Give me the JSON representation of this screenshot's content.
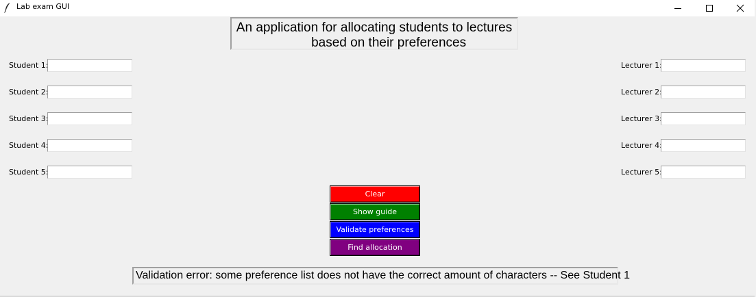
{
  "window": {
    "title": "Lab exam GUI",
    "icon": "feather-icon"
  },
  "header": {
    "text": "An application for allocating students to lectures\n        based on their preferences"
  },
  "students": [
    {
      "label": "Student 1:",
      "value": ""
    },
    {
      "label": "Student 2:",
      "value": ""
    },
    {
      "label": "Student 3:",
      "value": ""
    },
    {
      "label": "Student 4:",
      "value": ""
    },
    {
      "label": "Student 5:",
      "value": ""
    }
  ],
  "lecturers": [
    {
      "label": "Lecturer 1:",
      "value": ""
    },
    {
      "label": "Lecturer 2:",
      "value": ""
    },
    {
      "label": "Lecturer 3:",
      "value": ""
    },
    {
      "label": "Lecturer 4:",
      "value": ""
    },
    {
      "label": "Lecturer 5:",
      "value": ""
    }
  ],
  "buttons": {
    "clear": {
      "label": "Clear",
      "color": "#ff0000"
    },
    "show_guide": {
      "label": "Show guide",
      "color": "#008000"
    },
    "validate": {
      "label": "Validate preferences",
      "color": "#0000ff"
    },
    "find_allocation": {
      "label": "Find allocation",
      "color": "#800080"
    }
  },
  "status": {
    "message": "Validation error: some preference list does not have the correct amount of characters -- See Student 1"
  }
}
